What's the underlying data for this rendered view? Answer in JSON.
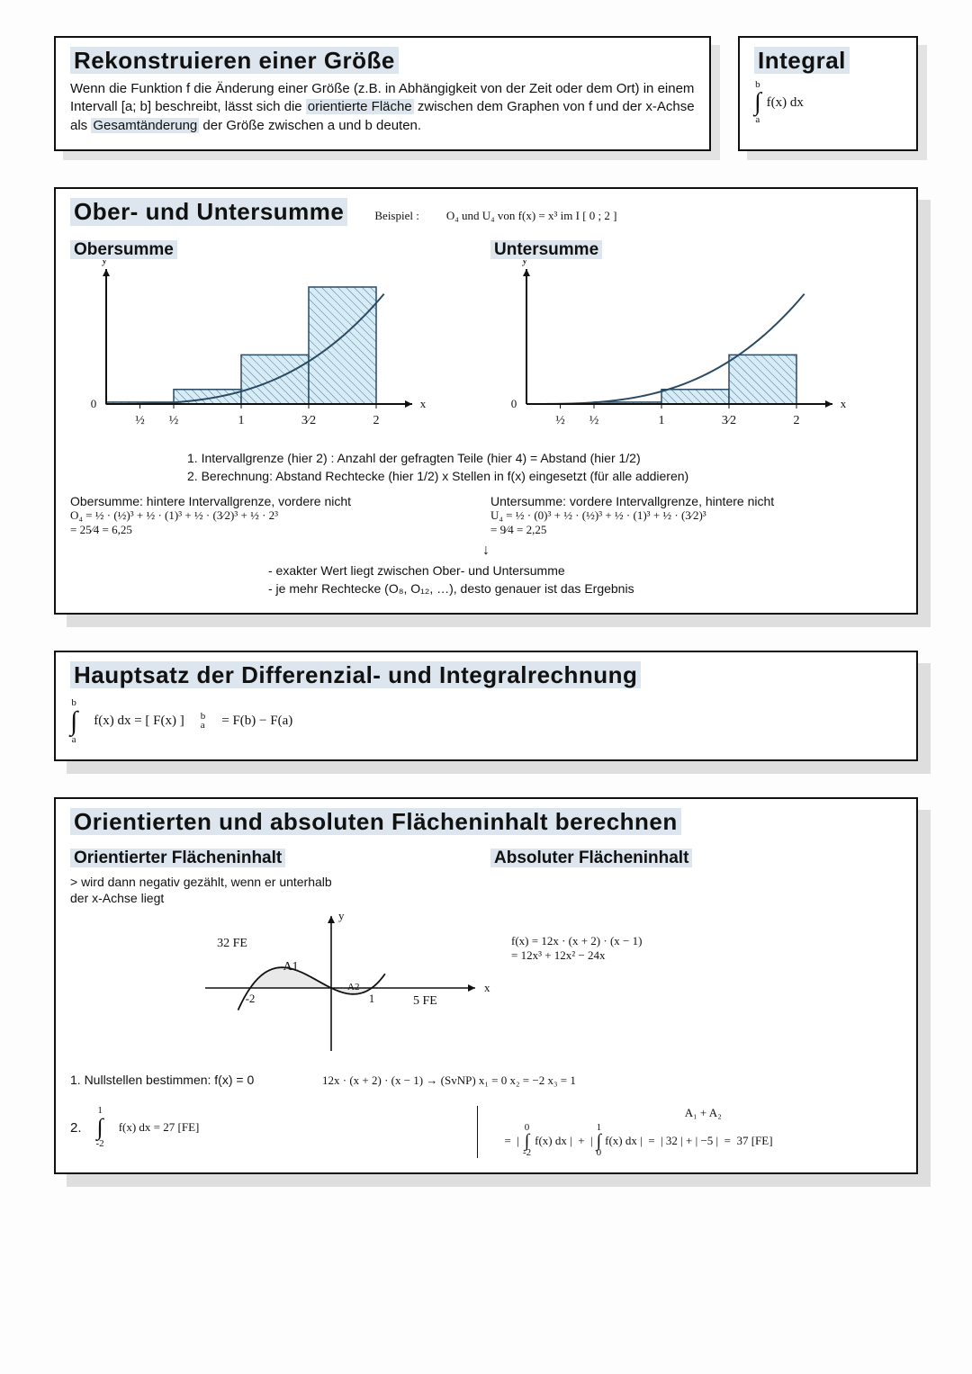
{
  "box1": {
    "title": "Rekonstruieren einer Größe",
    "p_a": "Wenn die Funktion f die Änderung einer Größe (z.B. in Abhängigkeit von der Zeit oder dem Ort) in einem Intervall [a; b] beschreibt, lässt sich die ",
    "hl1": "orientierte Fläche",
    "p_b": " zwischen dem Graphen von f und der x-Achse als ",
    "hl2": "Gesamtänderung",
    "p_c": " der Größe zwischen a und b deuten."
  },
  "box2": {
    "title": "Integral",
    "upper": "b",
    "lower": "a",
    "expr": "f(x) dx"
  },
  "box3": {
    "title": "Ober- und Untersumme",
    "beispiel_a": "Beispiel :",
    "beispiel_b": "O₄  und  U₄   von   f(x) =  x³      im    I [ 0 ; 2 ]",
    "left_h": "Obersumme",
    "right_h": "Untersumme",
    "chart": {
      "xticks": [
        "½",
        "½",
        "1",
        "3⁄2",
        "2"
      ],
      "ober_heights": [
        0.016,
        0.125,
        0.42,
        1.0
      ],
      "unter_heights": [
        0.0,
        0.016,
        0.125,
        0.42
      ],
      "bar_fill": "#d6ecf7",
      "bar_stroke": "#2b4a63",
      "curve_stroke": "#2b4a63"
    },
    "step1": "1. Intervallgrenze (hier 2) : Anzahl der gefragten Teile (hier 4) = Abstand (hier 1/2)",
    "step2": "2. Berechnung: Abstand Rechtecke (hier 1/2) x Stellen in f(x) eingesetzt (für alle addieren)",
    "ober_label": "Obersumme: hintere Intervallgrenze, vordere nicht",
    "unter_label": "Untersumme: vordere Intervallgrenze, hintere nicht",
    "ober_eq1": "O₄ =  ½ · (½)³  +  ½ · (1)³  +  ½ · (3⁄2)³  +  ½ · 2³",
    "ober_eq2": "   =  25⁄4  =   6,25",
    "unter_eq1": "U₄ =  ½ · (0)³  +  ½ · (½)³  +  ½ · (1)³  +  ½ · (3⁄2)³",
    "unter_eq2": "    =   9⁄4   =    2,25",
    "arrow": "↓",
    "note1": "- exakter Wert liegt zwischen Ober- und Untersumme",
    "note2": "- je mehr Rechtecke (O₈, O₁₂, …), desto genauer ist das Ergebnis"
  },
  "box4": {
    "title": "Hauptsatz der Differenzial- und Integralrechnung",
    "lhs_upper": "b",
    "lhs_lower": "a",
    "lhs": "f(x) dx   =   [ F(x) ]",
    "bracket_upper": "b",
    "bracket_lower": "a",
    "rhs": "=    F(b)  −  F(a)"
  },
  "box5": {
    "title": "Orientierten und absoluten Flächeninhalt berechnen",
    "left_h": "Orientierter Flächeninhalt",
    "right_h": "Absoluter Flächeninhalt",
    "left_sub": "> wird dann negativ gezählt, wenn er unterhalb der x-Achse liegt",
    "chart": {
      "label_32": "32 FE",
      "label_5": "5 FE",
      "A1": "A1",
      "A2": "A2",
      "tick_neg2": "-2",
      "tick_1": "1",
      "curve_stroke": "#111",
      "fill": "#eaeaea"
    },
    "fx1": "f(x) =  12x · (x + 2) · (x − 1)",
    "fx2": "     =  12x³ + 12x² − 24x",
    "step1_label": "1. Nullstellen bestimmen: f(x) = 0",
    "step1_eq": "12x · (x + 2) · (x − 1)     →   (SvNP)     x₁ = 0    x₂ = −2    x₃ = 1",
    "step2_num": "2.",
    "step2_left_upper": "1",
    "step2_left_lower": "-2",
    "step2_left": "f(x) dx   =   27  [FE]",
    "step2_right_top": "A₁ + A₂",
    "step2_right_int1_upper": "0",
    "step2_right_int1_lower": "-2",
    "step2_right_int2_upper": "1",
    "step2_right_int2_lower": "0",
    "step2_right": "=  | ∫ f(x) dx |  +  | ∫ f(x) dx |  =  | 32 | + | −5 |  =  37 [FE]"
  }
}
